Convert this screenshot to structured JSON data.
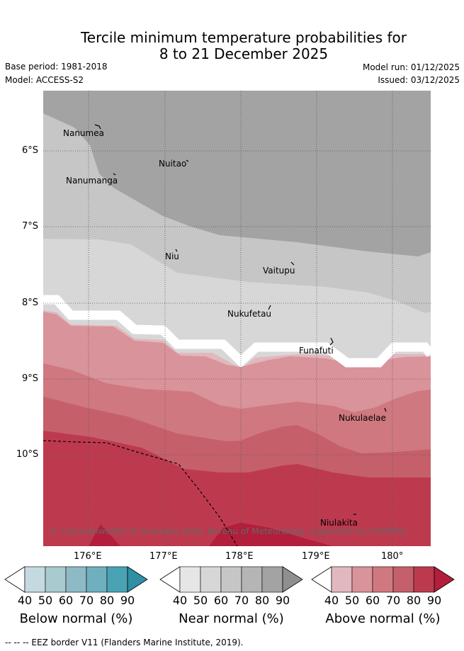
{
  "title": {
    "line1": "Tercile minimum temperature probabilities for",
    "line2": "8 to 21 December 2025"
  },
  "meta": {
    "base_period": "Base period: 1981-2018",
    "model": "Model: ACCESS-S2",
    "model_run": "Model run: 01/12/2025",
    "issued": "Issued: 03/12/2025"
  },
  "map": {
    "lat_labels": [
      "6°S",
      "7°S",
      "8°S",
      "9°S",
      "10°S"
    ],
    "lon_labels": [
      "176°E",
      "177°E",
      "178°E",
      "179°E",
      "180°"
    ],
    "places": [
      "Nanumea",
      "Nuitao",
      "Nanumanga",
      "Niu",
      "Vaitupu",
      "Nukufetau",
      "Funafuti",
      "Nukulaelae",
      "Niulakita"
    ],
    "copyright": "© Commonwealth of Australia 2025, Bureau of Meteorology, supported by COSPPac"
  },
  "legends": {
    "tick_labels": [
      "40",
      "50",
      "60",
      "70",
      "80",
      "90"
    ],
    "below": {
      "title": "Below normal (%)",
      "colors": [
        "#ffffff",
        "#c5dae0",
        "#a9cace",
        "#8dbac6",
        "#6fb0bf",
        "#4aa3b4",
        "#2e8fa5"
      ]
    },
    "near": {
      "title": "Near normal (%)",
      "colors": [
        "#ffffff",
        "#e6e6e6",
        "#d7d7d7",
        "#c6c6c6",
        "#b5b5b5",
        "#a3a3a3",
        "#8f8f8f"
      ]
    },
    "above": {
      "title": "Above normal (%)",
      "colors": [
        "#ffffff",
        "#e2b7be",
        "#d9939a",
        "#cf7880",
        "#c5606a",
        "#bd3a4e",
        "#b21e3c"
      ]
    }
  },
  "footer": "-- -- -- EEZ border V11 (Flanders Marine Institute, 2019)."
}
